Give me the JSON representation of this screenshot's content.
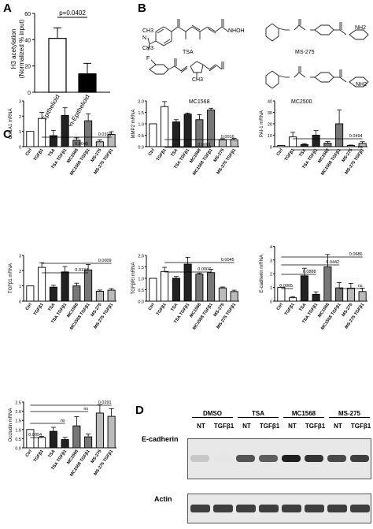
{
  "panels": {
    "a": "A",
    "b": "B",
    "c": "C",
    "d": "D"
  },
  "panelA": {
    "ylabel_line1": "H3 acetylation",
    "ylabel_line2": "(Normalized % input)",
    "pvalue": "p=0.0402",
    "yticks": [
      "0",
      "20",
      "40",
      "60"
    ],
    "categories": [
      "Epithelioid",
      "Non-Epithelioid"
    ]
  },
  "panelB": {
    "compounds": [
      "TSA",
      "MS-275",
      "MC1568",
      "MC2500"
    ],
    "atoms": {
      "n_ch3": "N",
      "ch3_top": "CH3",
      "ch3_bot": "CH3",
      "oh": "NHOH",
      "nh2": "NH2",
      "nh2b": "NH2",
      "f": "F",
      "ch3_mc": "CH3",
      "n_pyrrole": "N",
      "n_pyr1": "N",
      "n_pyr2": "N",
      "o": "O",
      "h": "H"
    }
  },
  "xcats": [
    "Ctrl",
    "TGFβ1",
    "TSA",
    "TSA TGFβ1",
    "MC1568",
    "MC1568 TGFβ1",
    "MS-275",
    "MS-275 TGFβ1"
  ],
  "chart_data": [
    {
      "type": "bar",
      "ylabel": "Col1A1 mRNA",
      "ylim": [
        0,
        3
      ],
      "yticks": [
        "0",
        "1",
        "2",
        "3"
      ],
      "values": [
        1.0,
        1.85,
        0.72,
        2.05,
        0.42,
        1.7,
        0.32,
        0.8
      ],
      "errors": [
        0,
        0.4,
        0.35,
        0.5,
        0.15,
        0.45,
        0.12,
        0.18
      ],
      "annotations": [
        "0.0319",
        "0.0048"
      ]
    },
    {
      "type": "bar",
      "ylabel": "MMP2 mRNA",
      "ylim": [
        0,
        2
      ],
      "yticks": [
        "0.0",
        "0.5",
        "1.0",
        "1.5",
        "2.0"
      ],
      "values": [
        1.0,
        1.75,
        1.08,
        1.42,
        1.18,
        1.6,
        0.3,
        0.3
      ],
      "errors": [
        0,
        0.22,
        0.1,
        0.05,
        0.22,
        0.08,
        0.05,
        0.06
      ],
      "annotations": [
        "0.0016",
        "0.0001"
      ]
    },
    {
      "type": "bar",
      "ylabel": "PAI-1 mRNA",
      "ylim": [
        0,
        40
      ],
      "yticks": [
        "0",
        "10",
        "20",
        "30",
        "40"
      ],
      "values": [
        1,
        8.5,
        1.8,
        10,
        3,
        20,
        1,
        2.8
      ],
      "errors": [
        0,
        4,
        0.8,
        4,
        1.5,
        12,
        0.4,
        1.5
      ],
      "annotations": [
        "0.0494",
        "ns"
      ]
    },
    {
      "type": "bar",
      "ylabel": "TGFβ1 mRNA",
      "ylim": [
        0,
        3
      ],
      "yticks": [
        "0",
        "1",
        "2",
        "3"
      ],
      "values": [
        1.0,
        2.22,
        0.92,
        1.92,
        1.0,
        2.05,
        0.65,
        0.72
      ],
      "errors": [
        0,
        0.3,
        0.12,
        0.35,
        0.18,
        0.35,
        0.08,
        0.1
      ],
      "annotations": [
        "0.0009",
        "0.0134"
      ]
    },
    {
      "type": "bar",
      "ylabel": "TGFβRI mRNA",
      "ylim": [
        0,
        2
      ],
      "yticks": [
        "0.0",
        "0.5",
        "1.0",
        "1.5",
        "2.0"
      ],
      "values": [
        1.0,
        1.3,
        1.0,
        1.62,
        1.18,
        1.25,
        0.58,
        0.42
      ],
      "errors": [
        0,
        0.18,
        0.08,
        0.3,
        0.05,
        0.15,
        0.04,
        0.06
      ],
      "annotations": [
        "0.0045",
        "0.0007"
      ]
    },
    {
      "type": "bar",
      "ylabel": "E-cadherin mRNA",
      "ylim": [
        0,
        4
      ],
      "yticks": [
        "0",
        "1",
        "2",
        "3",
        "4"
      ],
      "values": [
        1.0,
        0.25,
        1.85,
        0.5,
        2.5,
        0.97,
        0.95,
        0.7
      ],
      "errors": [
        0,
        0.08,
        0.55,
        0.18,
        0.9,
        0.38,
        0.35,
        0.25
      ],
      "annotations": [
        "0.0686",
        "0.0442",
        "0.0888",
        "0.0005",
        "ns"
      ]
    },
    {
      "type": "bar",
      "ylabel": "Occludin mRNA",
      "ylim": [
        0,
        2.5
      ],
      "yticks": [
        "0.0",
        "0.5",
        "1.0",
        "1.5",
        "2.0",
        "2.5"
      ],
      "values": [
        1.0,
        0.57,
        0.9,
        0.45,
        1.2,
        0.6,
        1.9,
        1.72
      ],
      "errors": [
        0,
        0.05,
        0.22,
        0.12,
        0.5,
        0.15,
        0.45,
        0.42
      ],
      "annotations": [
        "0.0291",
        "ns",
        "ns",
        "0.0054"
      ]
    },
    {
      "type": "bar",
      "ylabel": "",
      "ylim": [
        0,
        60
      ],
      "categories": [
        "Epithelioid",
        "Non-Epithelioid"
      ],
      "values": [
        41,
        14
      ],
      "errors": [
        8,
        8
      ]
    }
  ],
  "panelD": {
    "groups": [
      "DMSO",
      "TSA",
      "MC1568",
      "MS-275"
    ],
    "lanes": [
      "NT",
      "TGFβ1",
      "NT",
      "TGFβ1",
      "NT",
      "TGFβ1",
      "NT",
      "TGFβ1"
    ],
    "rows": [
      "E-cadherin",
      "Actin"
    ],
    "ecad_intensity": [
      0.15,
      0.0,
      0.7,
      0.65,
      0.95,
      0.85,
      0.75,
      0.8
    ],
    "actin_intensity": [
      0.8,
      0.8,
      0.8,
      0.8,
      0.8,
      0.8,
      0.8,
      0.8
    ]
  }
}
